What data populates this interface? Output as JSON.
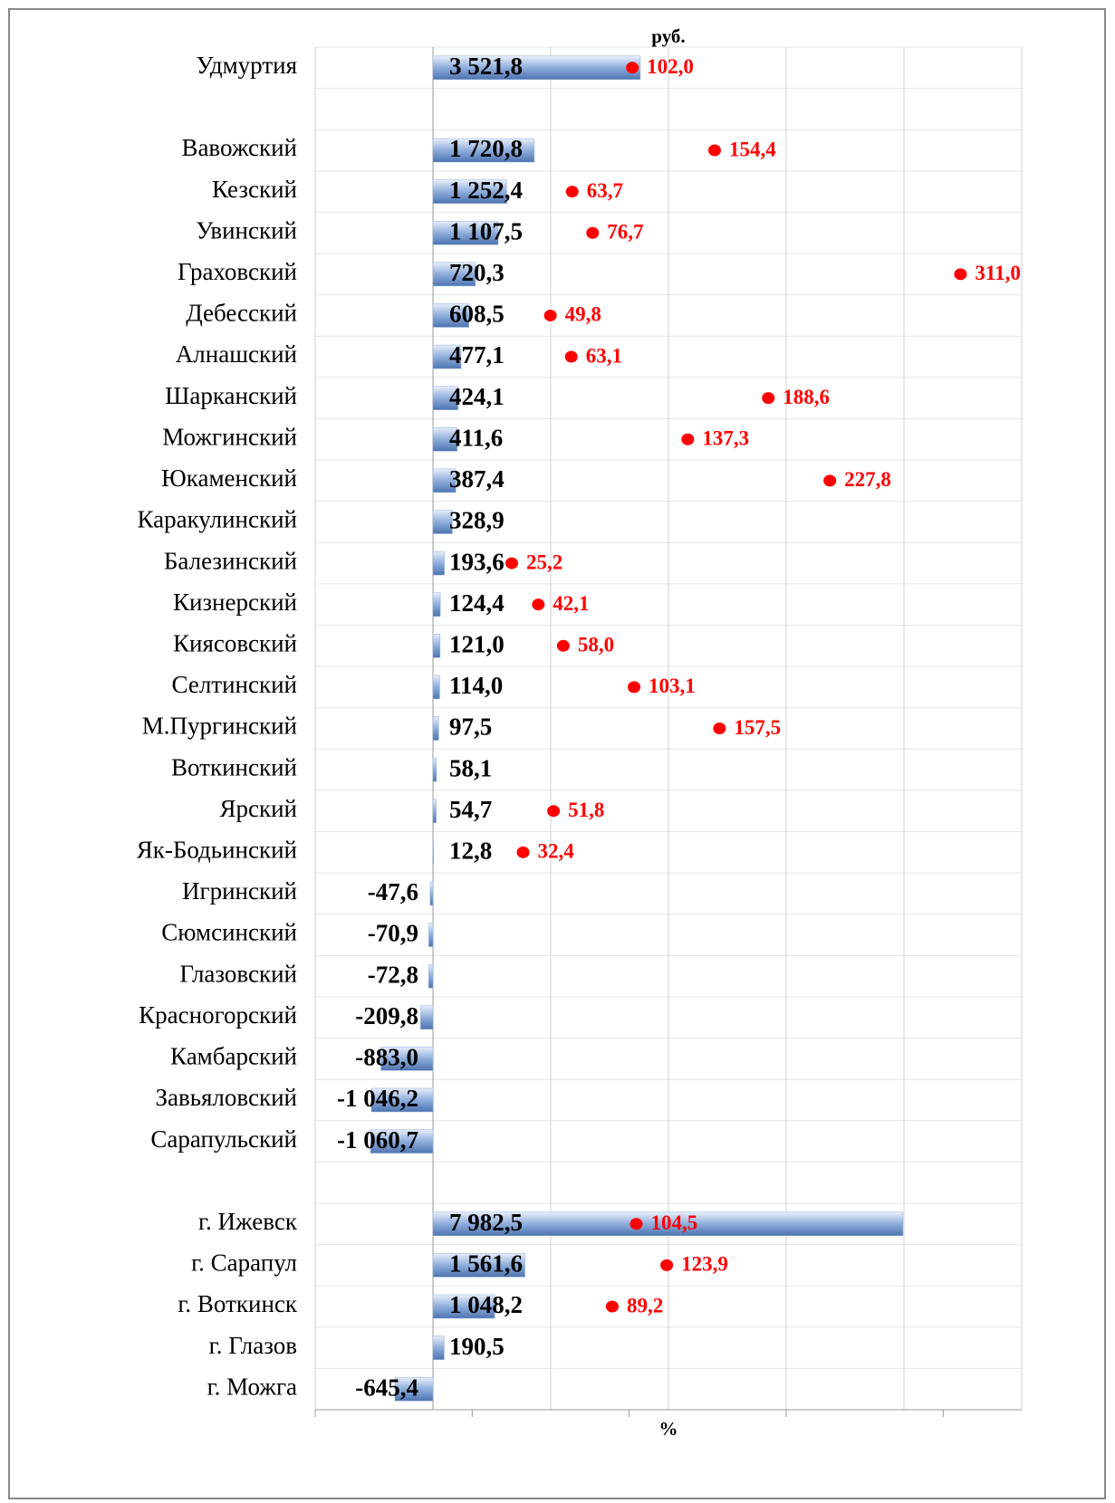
{
  "chart_data": {
    "type": "bar",
    "x_label_top": "руб.",
    "x_label_bottom": "%",
    "categories": [
      "Удмуртия",
      null,
      "Вавожский",
      "Кезский",
      "Увинский",
      "Граховский",
      "Дебесский",
      "Алнашский",
      "Шарканский",
      "Можгинский",
      "Юкаменский",
      "Каракулинский",
      "Балезинский",
      "Кизнерский",
      "Киясовский",
      "Селтинский",
      "М.Пургинский",
      "Воткинский",
      "Ярский",
      "Як-Бодьинский",
      "Игринский",
      "Сюмсинский",
      "Глазовский",
      "Красногорский",
      "Камбарский",
      "Завьяловский",
      "Сарапульский",
      null,
      "г. Ижевск",
      "г. Сарапул",
      "г. Воткинск",
      "г. Глазов",
      "г. Можга"
    ],
    "series": [
      {
        "name": "руб.",
        "color": "#8eaedc",
        "values": [
          3521.8,
          null,
          1720.8,
          1252.4,
          1107.5,
          720.3,
          608.5,
          477.1,
          424.1,
          411.6,
          387.4,
          328.9,
          193.6,
          124.4,
          121.0,
          114.0,
          97.5,
          58.1,
          54.7,
          12.8,
          -47.6,
          -70.9,
          -72.8,
          -209.8,
          -883.0,
          -1046.2,
          -1060.7,
          null,
          7982.5,
          1561.6,
          1048.2,
          190.5,
          -645.4
        ],
        "value_labels": [
          "3 521,8",
          null,
          "1 720,8",
          "1 252,4",
          "1 107,5",
          "720,3",
          "608,5",
          "477,1",
          "424,1",
          "411,6",
          "387,4",
          "328,9",
          "193,6",
          "124,4",
          "121,0",
          "114,0",
          "97,5",
          "58,1",
          "54,7",
          "12,8",
          "-47,6",
          "-70,9",
          "-72,8",
          "-209,8",
          "-883,0",
          "-1 046,2",
          "-1 060,7",
          null,
          "7 982,5",
          "1 561,6",
          "1 048,2",
          "190,5",
          "-645,4"
        ]
      },
      {
        "name": "%",
        "color": "#ff0000",
        "axis": "x2",
        "values": [
          102.0,
          null,
          154.4,
          63.7,
          76.7,
          311.0,
          49.8,
          63.1,
          188.6,
          137.3,
          227.8,
          null,
          25.2,
          42.1,
          58.0,
          103.1,
          157.5,
          null,
          51.8,
          32.4,
          null,
          null,
          null,
          null,
          null,
          null,
          null,
          null,
          104.5,
          123.9,
          89.2,
          null,
          null
        ],
        "value_labels": [
          "102,0",
          null,
          "154,4",
          "63,7",
          "76,7",
          "311,0",
          "49,8",
          "63,1",
          "188,6",
          "137,3",
          "227,8",
          null,
          "25,2",
          "42,1",
          "58,0",
          "103,1",
          "157,5",
          null,
          "51,8",
          "32,4",
          null,
          null,
          null,
          null,
          null,
          null,
          null,
          null,
          "104,5",
          "123,9",
          "89,2",
          null,
          null
        ]
      }
    ],
    "xlim": [
      -2000,
      10000
    ],
    "xticks": [
      -2000,
      0,
      2000,
      4000,
      6000,
      8000,
      10000
    ],
    "x2lim": [
      -100,
      350
    ],
    "x2ticks": [
      -100,
      0,
      100,
      200,
      300
    ],
    "grid": true
  }
}
